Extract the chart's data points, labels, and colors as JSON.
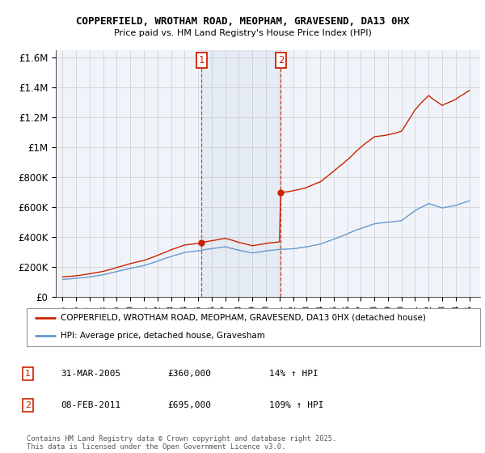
{
  "title": "COPPERFIELD, WROTHAM ROAD, MEOPHAM, GRAVESEND, DA13 0HX",
  "subtitle": "Price paid vs. HM Land Registry's House Price Index (HPI)",
  "hpi_color": "#6699cc",
  "price_color": "#cc2200",
  "background_color": "#f0f4fa",
  "plot_bg_color": "#f0f4fa",
  "grid_color": "#cccccc",
  "sale1_x": 2005.25,
  "sale1_price": 360000,
  "sale2_x": 2011.1,
  "sale2_price": 695000,
  "ylim": [
    0,
    1650000
  ],
  "xlim": [
    1994.5,
    2025.8
  ],
  "ylabel_ticks": [
    0,
    200000,
    400000,
    600000,
    800000,
    1000000,
    1200000,
    1400000,
    1600000
  ],
  "ylabel_labels": [
    "£0",
    "£200K",
    "£400K",
    "£600K",
    "£800K",
    "£1M",
    "£1.2M",
    "£1.4M",
    "£1.6M"
  ],
  "xticks": [
    1995,
    1996,
    1997,
    1998,
    1999,
    2000,
    2001,
    2002,
    2003,
    2004,
    2005,
    2006,
    2007,
    2008,
    2009,
    2010,
    2011,
    2012,
    2013,
    2014,
    2015,
    2016,
    2017,
    2018,
    2019,
    2020,
    2021,
    2022,
    2023,
    2024,
    2025
  ],
  "legend_line1": "COPPERFIELD, WROTHAM ROAD, MEOPHAM, GRAVESEND, DA13 0HX (detached house)",
  "legend_line2": "HPI: Average price, detached house, Gravesham",
  "table_rows": [
    [
      "1",
      "31-MAR-2005",
      "£360,000",
      "14% ↑ HPI"
    ],
    [
      "2",
      "08-FEB-2011",
      "£695,000",
      "109% ↑ HPI"
    ]
  ],
  "footnote": "Contains HM Land Registry data © Crown copyright and database right 2025.\nThis data is licensed under the Open Government Licence v3.0.",
  "box_color": "#cc2200"
}
